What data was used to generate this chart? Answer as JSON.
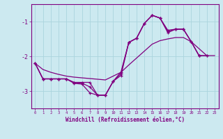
{
  "xlabel": "Windchill (Refroidissement éolien,°C)",
  "hours": [
    0,
    1,
    2,
    3,
    4,
    5,
    6,
    7,
    8,
    9,
    10,
    11,
    12,
    13,
    14,
    15,
    16,
    17,
    18,
    19,
    20,
    21,
    22,
    23
  ],
  "line_max": [
    -2.2,
    -2.65,
    -2.65,
    -2.65,
    -2.65,
    -2.75,
    -2.75,
    -2.75,
    -3.12,
    -3.12,
    -2.72,
    -2.45,
    -1.6,
    -1.48,
    -1.05,
    -0.82,
    -0.9,
    -1.25,
    -1.22,
    -1.22,
    -1.58,
    -1.98,
    null,
    null
  ],
  "line_min": [
    -2.2,
    -2.65,
    -2.65,
    -2.65,
    -2.65,
    -2.78,
    -2.8,
    -3.05,
    -3.12,
    -3.12,
    -2.72,
    -2.55,
    -1.6,
    -1.48,
    -1.05,
    -0.82,
    -0.9,
    -1.32,
    -1.22,
    -1.22,
    -1.58,
    -1.98,
    -1.98,
    null
  ],
  "line_mean": [
    -2.2,
    -2.65,
    -2.65,
    -2.65,
    -2.65,
    -2.76,
    -2.77,
    -2.88,
    -3.12,
    -3.12,
    -2.72,
    -2.5,
    -1.6,
    -1.48,
    -1.05,
    -0.82,
    -0.9,
    -1.28,
    -1.22,
    -1.22,
    -1.58,
    -1.98,
    -1.98,
    null
  ],
  "line_straight": [
    -2.2,
    -2.38,
    -2.46,
    -2.52,
    -2.57,
    -2.6,
    -2.62,
    -2.64,
    -2.66,
    -2.68,
    -2.57,
    -2.46,
    -2.25,
    -2.05,
    -1.85,
    -1.65,
    -1.55,
    -1.5,
    -1.46,
    -1.46,
    -1.58,
    -1.78,
    -1.98,
    -1.98
  ],
  "bg_color": "#cce9f0",
  "grid_color": "#aad4de",
  "line_color": "#800080",
  "ylim": [
    -3.5,
    -0.5
  ],
  "yticks": [
    -3.0,
    -2.0,
    -1.0
  ],
  "xlim": [
    -0.5,
    23.5
  ]
}
